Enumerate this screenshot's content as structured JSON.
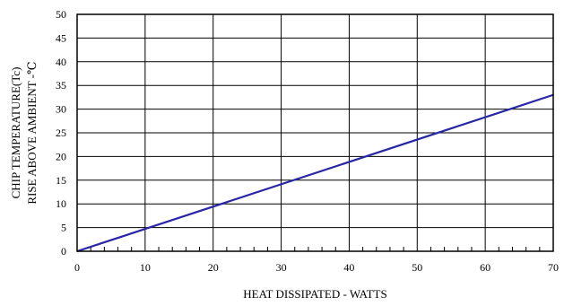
{
  "chart_data": {
    "type": "line",
    "xlabel": "HEAT DISSIPATED - WATTS",
    "ylabel_lines": [
      "CHIP TEMPERATURE(Tc)",
      "RISE ABOVE AMBIENT -℃"
    ],
    "xlim": [
      0,
      70
    ],
    "ylim": [
      0,
      50
    ],
    "x_ticks": [
      0,
      10,
      20,
      30,
      40,
      50,
      60,
      70
    ],
    "y_ticks": [
      0,
      5,
      10,
      15,
      20,
      25,
      30,
      35,
      40,
      45,
      50
    ],
    "x_minor_step": 2,
    "grid": true,
    "legend": "none",
    "series": [
      {
        "x": [
          0,
          70
        ],
        "y": [
          0,
          33
        ],
        "color": "#2626a6"
      }
    ]
  }
}
